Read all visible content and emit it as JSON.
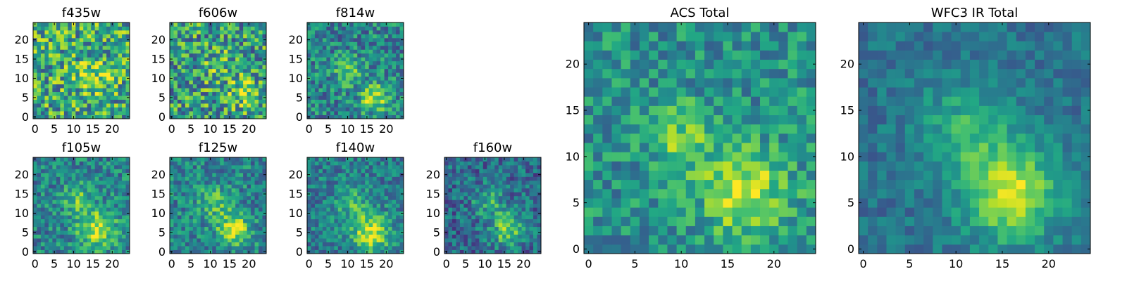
{
  "chart_data": {
    "type": "heatmap",
    "colormap": "viridis",
    "colors": {
      "low": "#440154",
      "mid": "#21918c",
      "high": "#fde725",
      "axis": "#000000",
      "background": "#ffffff"
    },
    "grid": false,
    "panels": [
      {
        "id": "f435w",
        "title": "f435w",
        "size": 25,
        "xlim": [
          -0.5,
          24.5
        ],
        "ylim": [
          -0.5,
          24.5
        ],
        "xticks": [
          0,
          5,
          10,
          15,
          20
        ],
        "yticks": [
          0,
          5,
          10,
          15,
          20
        ],
        "blobs": [
          {
            "x": 15,
            "y": 11,
            "amp": 0.25,
            "sigma": 3
          }
        ],
        "base": 0.6,
        "noise": 0.35,
        "seed": 11
      },
      {
        "id": "f606w",
        "title": "f606w",
        "size": 25,
        "xlim": [
          -0.5,
          24.5
        ],
        "ylim": [
          -0.5,
          24.5
        ],
        "xticks": [
          0,
          5,
          10,
          15,
          20
        ],
        "yticks": [
          0,
          5,
          10,
          15,
          20
        ],
        "blobs": [
          {
            "x": 19,
            "y": 6,
            "amp": 0.3,
            "sigma": 2.5
          },
          {
            "x": 12,
            "y": 13,
            "amp": 0.15,
            "sigma": 3
          }
        ],
        "base": 0.55,
        "noise": 0.35,
        "seed": 23
      },
      {
        "id": "f814w",
        "title": "f814w",
        "size": 25,
        "xlim": [
          -0.5,
          24.5
        ],
        "ylim": [
          -0.5,
          24.5
        ],
        "xticks": [
          0,
          5,
          10,
          15,
          20
        ],
        "yticks": [
          0,
          5,
          10,
          15,
          20
        ],
        "blobs": [
          {
            "x": 17,
            "y": 5,
            "amp": 0.45,
            "sigma": 2.5
          },
          {
            "x": 10,
            "y": 12,
            "amp": 0.3,
            "sigma": 2.5
          }
        ],
        "base": 0.45,
        "noise": 0.25,
        "seed": 37
      },
      {
        "id": "f105w",
        "title": "f105w",
        "size": 25,
        "xlim": [
          -0.5,
          24.5
        ],
        "ylim": [
          -0.5,
          24.5
        ],
        "xticks": [
          0,
          5,
          10,
          15,
          20
        ],
        "yticks": [
          0,
          5,
          10,
          15,
          20
        ],
        "blobs": [
          {
            "x": 16,
            "y": 6,
            "amp": 0.45,
            "sigma": 3.5
          },
          {
            "x": 11,
            "y": 14,
            "amp": 0.3,
            "sigma": 2.5
          }
        ],
        "base": 0.45,
        "noise": 0.22,
        "seed": 41
      },
      {
        "id": "f125w",
        "title": "f125w",
        "size": 25,
        "xlim": [
          -0.5,
          24.5
        ],
        "ylim": [
          -0.5,
          24.5
        ],
        "xticks": [
          0,
          5,
          10,
          15,
          20
        ],
        "yticks": [
          0,
          5,
          10,
          15,
          20
        ],
        "blobs": [
          {
            "x": 16,
            "y": 6,
            "amp": 0.45,
            "sigma": 3
          },
          {
            "x": 11,
            "y": 13,
            "amp": 0.25,
            "sigma": 3
          }
        ],
        "base": 0.45,
        "noise": 0.22,
        "seed": 53
      },
      {
        "id": "f140w",
        "title": "f140w",
        "size": 25,
        "xlim": [
          -0.5,
          24.5
        ],
        "ylim": [
          -0.5,
          24.5
        ],
        "xticks": [
          0,
          5,
          10,
          15,
          20
        ],
        "yticks": [
          0,
          5,
          10,
          15,
          20
        ],
        "blobs": [
          {
            "x": 16,
            "y": 5,
            "amp": 0.5,
            "sigma": 3.5
          },
          {
            "x": 11,
            "y": 13,
            "amp": 0.25,
            "sigma": 3
          }
        ],
        "base": 0.42,
        "noise": 0.2,
        "seed": 67
      },
      {
        "id": "f160w",
        "title": "f160w",
        "size": 25,
        "xlim": [
          -0.5,
          24.5
        ],
        "ylim": [
          -0.5,
          24.5
        ],
        "xticks": [
          0,
          5,
          10,
          15,
          20
        ],
        "yticks": [
          0,
          5,
          10,
          15,
          20
        ],
        "blobs": [
          {
            "x": 16,
            "y": 6,
            "amp": 0.45,
            "sigma": 3
          },
          {
            "x": 11,
            "y": 13,
            "amp": 0.25,
            "sigma": 3
          }
        ],
        "base": 0.35,
        "noise": 0.22,
        "seed": 79
      },
      {
        "id": "acs-total",
        "title": "ACS Total",
        "size": 25,
        "xlim": [
          -0.5,
          24.5
        ],
        "ylim": [
          -0.5,
          24.5
        ],
        "xticks": [
          0,
          5,
          10,
          15,
          20
        ],
        "yticks": [
          0,
          5,
          10,
          15,
          20
        ],
        "blobs": [
          {
            "x": 17,
            "y": 6,
            "amp": 0.42,
            "sigma": 3.2
          },
          {
            "x": 10,
            "y": 12,
            "amp": 0.28,
            "sigma": 2.5
          }
        ],
        "base": 0.5,
        "noise": 0.2,
        "seed": 97
      },
      {
        "id": "wfc3-ir-total",
        "title": "WFC3 IR Total",
        "size": 25,
        "xlim": [
          -0.5,
          24.5
        ],
        "ylim": [
          -0.5,
          24.5
        ],
        "xticks": [
          0,
          5,
          10,
          15,
          20
        ],
        "yticks": [
          0,
          5,
          10,
          15,
          20
        ],
        "blobs": [
          {
            "x": 16,
            "y": 6,
            "amp": 0.55,
            "sigma": 3.5
          },
          {
            "x": 11,
            "y": 13,
            "amp": 0.25,
            "sigma": 3.5
          }
        ],
        "base": 0.38,
        "noise": 0.12,
        "seed": 113
      }
    ]
  }
}
